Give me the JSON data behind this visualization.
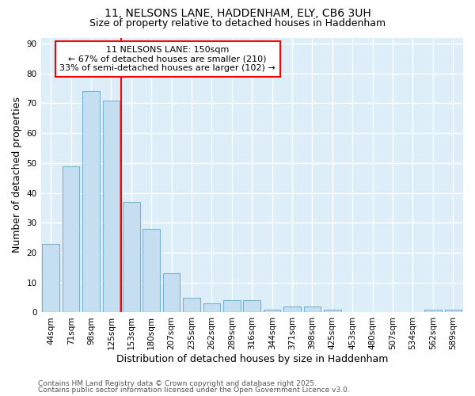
{
  "title1": "11, NELSONS LANE, HADDENHAM, ELY, CB6 3UH",
  "title2": "Size of property relative to detached houses in Haddenham",
  "xlabel": "Distribution of detached houses by size in Haddenham",
  "ylabel": "Number of detached properties",
  "categories": [
    "44sqm",
    "71sqm",
    "98sqm",
    "125sqm",
    "153sqm",
    "180sqm",
    "207sqm",
    "235sqm",
    "262sqm",
    "289sqm",
    "316sqm",
    "344sqm",
    "371sqm",
    "398sqm",
    "425sqm",
    "453sqm",
    "480sqm",
    "507sqm",
    "534sqm",
    "562sqm",
    "589sqm"
  ],
  "values": [
    23,
    49,
    74,
    71,
    37,
    28,
    13,
    5,
    3,
    4,
    4,
    1,
    2,
    2,
    1,
    0,
    0,
    0,
    0,
    1,
    1
  ],
  "bar_color": "#c5dff0",
  "bar_edge_color": "#7ab4d4",
  "background_color": "#ddeef8",
  "annotation_line1": "11 NELSONS LANE: 150sqm",
  "annotation_line2": "← 67% of detached houses are smaller (210)",
  "annotation_line3": "33% of semi-detached houses are larger (102) →",
  "vline_x_index": 4,
  "vline_color": "red",
  "ylim": [
    0,
    92
  ],
  "yticks": [
    0,
    10,
    20,
    30,
    40,
    50,
    60,
    70,
    80,
    90
  ],
  "footer1": "Contains HM Land Registry data © Crown copyright and database right 2025.",
  "footer2": "Contains public sector information licensed under the Open Government Licence v3.0.",
  "title_fontsize": 10,
  "subtitle_fontsize": 9,
  "axis_label_fontsize": 9,
  "tick_fontsize": 7.5,
  "annotation_fontsize": 8,
  "footer_fontsize": 6.5
}
